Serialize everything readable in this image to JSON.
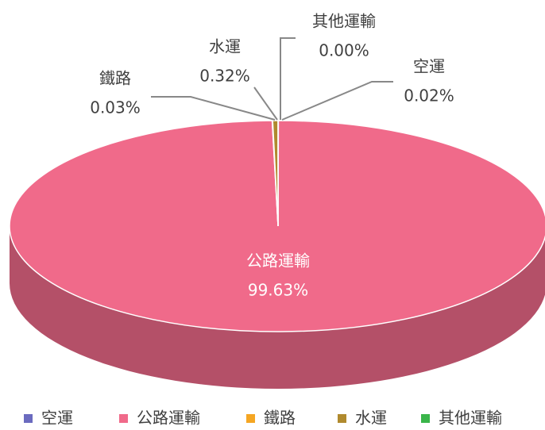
{
  "chart_data": {
    "type": "pie3d",
    "categories": [
      "空運",
      "公路運輸",
      "鐵路",
      "水運",
      "其他運輸"
    ],
    "values": [
      0.02,
      99.63,
      0.03,
      0.32,
      0
    ],
    "value_labels": [
      "0.02%",
      "99.63%",
      "0.03%",
      "0.32%",
      "0.00%"
    ],
    "colors": [
      "#6b6bbf",
      "#f06a8a",
      "#f5a623",
      "#b08a2e",
      "#3ab54a"
    ],
    "legend": "bottom"
  }
}
